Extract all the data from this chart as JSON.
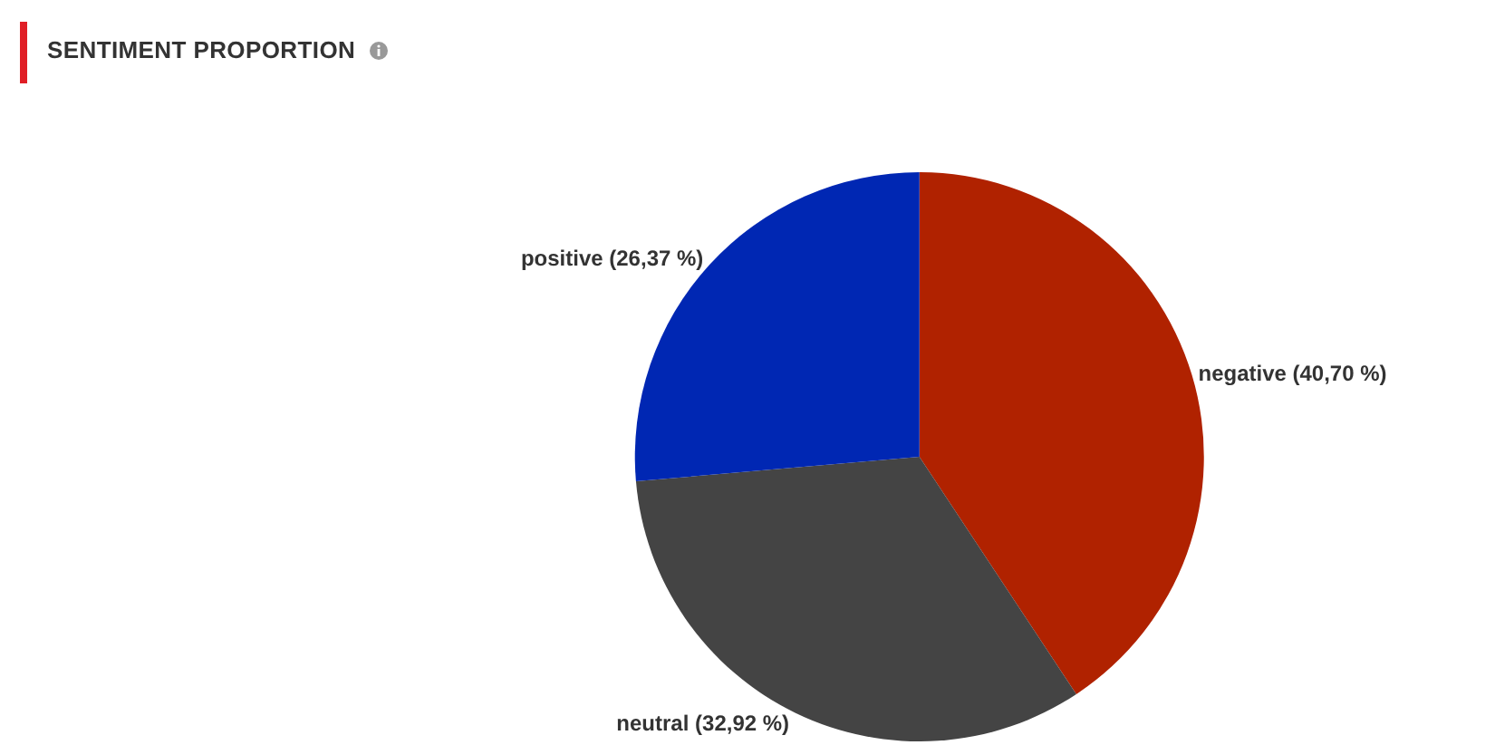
{
  "chart_data": {
    "type": "pie",
    "title": "SENTIMENT PROPORTION",
    "categories": [
      "negative",
      "neutral",
      "positive"
    ],
    "values": [
      40.7,
      32.92,
      26.37
    ],
    "value_labels": [
      "(40,70 %)",
      "(32,92 %)",
      "(26,37 %)"
    ],
    "colors": [
      "#b02200",
      "#444444",
      "#0027b3"
    ],
    "legend": false
  }
}
